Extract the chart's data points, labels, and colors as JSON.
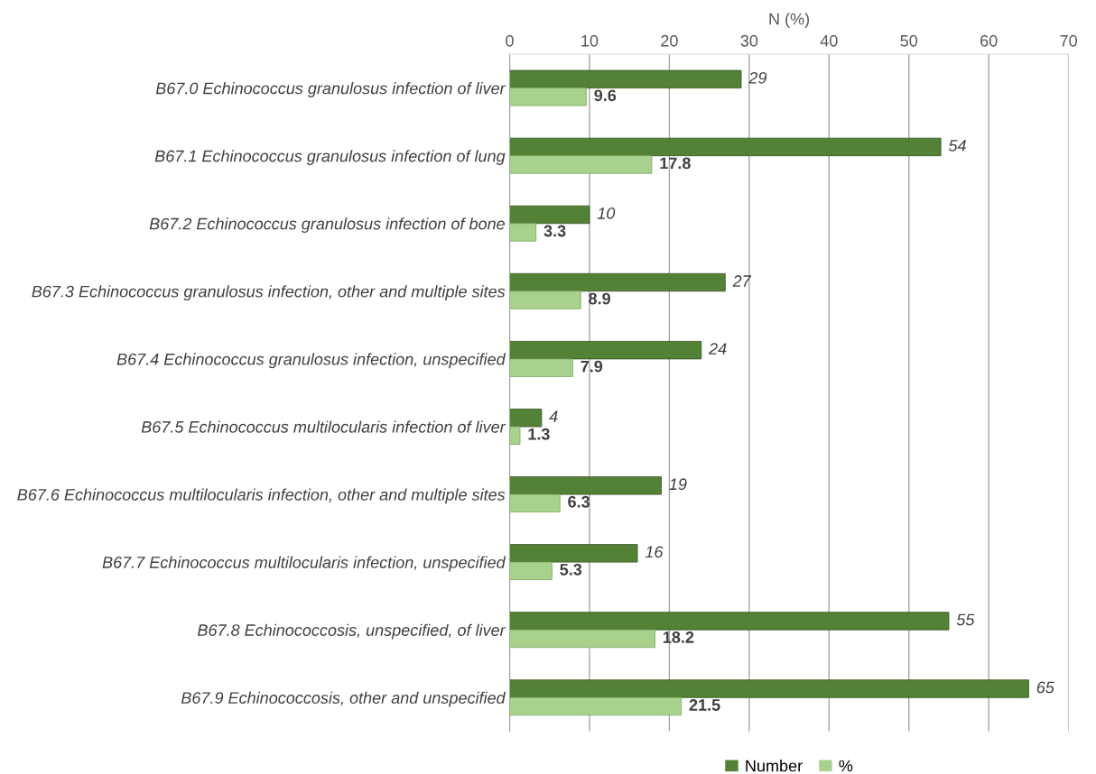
{
  "chart_data": {
    "type": "bar",
    "orientation": "horizontal",
    "xlabel": "N (%)",
    "categories": [
      "B67.0 Echinococcus granulosus infection of liver",
      "B67.1 Echinococcus granulosus infection of lung",
      "B67.2 Echinococcus granulosus infection of bone",
      "B67.3 Echinococcus granulosus infection, other and multiple sites",
      "B67.4 Echinococcus granulosus infection, unspecified",
      "B67.5 Echinococcus multilocularis infection of liver",
      "B67.6 Echinococcus multilocularis infection, other and multiple sites",
      "B67.7 Echinococcus multilocularis infection, unspecified",
      "B67.8 Echinococcosis, unspecified, of liver",
      "B67.9 Echinococcosis, other and unspecified"
    ],
    "series": [
      {
        "name": "Number",
        "color": "#538135",
        "values": [
          29,
          54,
          10,
          27,
          24,
          4,
          19,
          16,
          55,
          65
        ]
      },
      {
        "name": "%",
        "color": "#a9d18e",
        "values": [
          9.6,
          17.8,
          3.3,
          8.9,
          7.9,
          1.3,
          6.3,
          5.3,
          18.2,
          21.5
        ]
      }
    ],
    "xlim": [
      0,
      70
    ],
    "xticks": [
      0,
      10,
      20,
      30,
      40,
      50,
      60,
      70
    ],
    "grid": "x",
    "legend": "bottom",
    "data_labels": true
  }
}
